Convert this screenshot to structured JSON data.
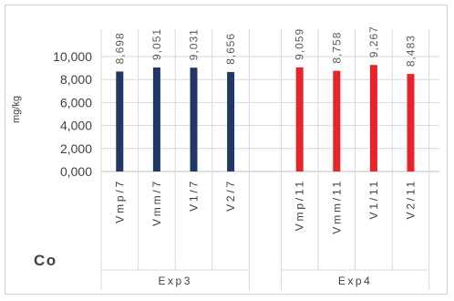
{
  "chart_data": {
    "type": "bar",
    "chart_label": "Co",
    "ylabel": "mg/kg",
    "ylim": [
      0,
      10
    ],
    "yticks": [
      0,
      2,
      4,
      6,
      8,
      10
    ],
    "ytick_labels": [
      "0,000",
      "2,000",
      "4,000",
      "6,000",
      "8,000",
      "10,000"
    ],
    "grid": true,
    "categories": [
      "Vmp/7",
      "Vmm/7",
      "V1/7",
      "V2/7",
      "Vmp/11",
      "Vmm/11",
      "V1/11",
      "V2/11"
    ],
    "groups": [
      {
        "label": "Exp3",
        "count": 4,
        "color": "#1f3864"
      },
      {
        "label": "Exp4",
        "count": 4,
        "color": "#e8242b"
      }
    ],
    "values": [
      8.698,
      9.051,
      9.031,
      8.656,
      9.059,
      8.758,
      9.267,
      8.483
    ],
    "value_labels": [
      "8,698",
      "9,051",
      "9,031",
      "8,656",
      "9,059",
      "8,758",
      "9,267",
      "8,483"
    ]
  }
}
